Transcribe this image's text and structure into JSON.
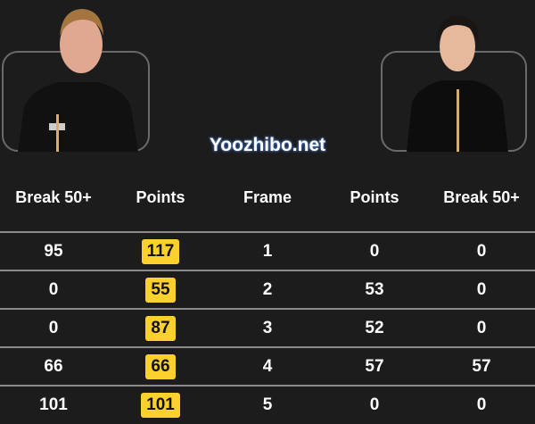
{
  "headers": [
    "Break 50+",
    "Points",
    "Frame",
    "Points",
    "Break 50+"
  ],
  "rows": [
    [
      "95",
      "117",
      "1",
      "0",
      "0"
    ],
    [
      "0",
      "55",
      "2",
      "53",
      "0"
    ],
    [
      "0",
      "87",
      "3",
      "52",
      "0"
    ],
    [
      "66",
      "66",
      "4",
      "57",
      "57"
    ],
    [
      "101",
      "101",
      "5",
      "0",
      "0"
    ]
  ],
  "highlight_color": "#fdd12d",
  "watermark": "Yoozhibo.net"
}
